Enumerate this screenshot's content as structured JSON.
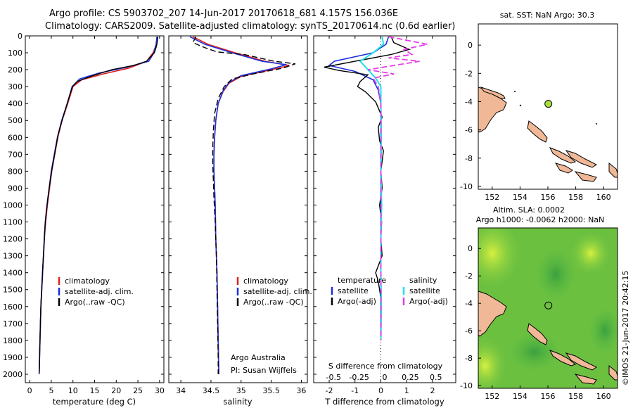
{
  "header": {
    "line1": "Argo profile: CS 5903702_207 14-Jun-2017 20170618_681 4.157S 156.036E",
    "line2": "Climatology: CARS2009. Satellite-adjusted climatology: synTS_20170614.nc (0.6d earlier)"
  },
  "side_text": "©IMOS 21-Jun-2017 20:42:15",
  "colors": {
    "climatology": "#e02020",
    "satellite": "#1a2fe0",
    "argo": "#000000",
    "cyan": "#20e0e8",
    "magenta": "#e83ce8",
    "land": "#f0b896",
    "dot": "#a8e040"
  },
  "chart_data": [
    {
      "id": "temperature",
      "type": "line",
      "xlabel": "temperature (deg C)",
      "ylim": [
        2050,
        0
      ],
      "xlim": [
        -1,
        31
      ],
      "xticks": [
        0,
        5,
        10,
        15,
        20,
        25,
        30
      ],
      "yticks": [
        0,
        100,
        200,
        300,
        400,
        500,
        600,
        700,
        800,
        900,
        1000,
        1100,
        1200,
        1300,
        1400,
        1500,
        1600,
        1700,
        1800,
        1900,
        2000
      ],
      "legend": [
        "climatology",
        "satellite-adj. clim.",
        "Argo(..raw -QC)"
      ],
      "series": [
        {
          "name": "climatology",
          "color": "climatology",
          "points": [
            [
              29.5,
              5
            ],
            [
              29.3,
              50
            ],
            [
              28.5,
              100
            ],
            [
              27,
              150
            ],
            [
              23,
              190
            ],
            [
              17,
              225
            ],
            [
              12,
              260
            ],
            [
              10,
              300
            ],
            [
              8.8,
              400
            ],
            [
              7.5,
              500
            ],
            [
              6.5,
              600
            ],
            [
              5.8,
              700
            ],
            [
              5.1,
              800
            ],
            [
              4.6,
              900
            ],
            [
              4.1,
              1000
            ],
            [
              3.7,
              1100
            ],
            [
              3.4,
              1200
            ],
            [
              3.2,
              1300
            ],
            [
              3.0,
              1400
            ],
            [
              2.8,
              1500
            ],
            [
              2.6,
              1600
            ],
            [
              2.5,
              1700
            ],
            [
              2.4,
              1800
            ],
            [
              2.3,
              1900
            ],
            [
              2.2,
              2000
            ]
          ]
        },
        {
          "name": "satellite-adj. clim.",
          "color": "satellite",
          "points": [
            [
              29.4,
              5
            ],
            [
              29.2,
              50
            ],
            [
              28.7,
              100
            ],
            [
              27.5,
              150
            ],
            [
              22.5,
              185
            ],
            [
              16,
              220
            ],
            [
              11.5,
              255
            ],
            [
              9.8,
              300
            ],
            [
              8.7,
              400
            ],
            [
              7.4,
              500
            ],
            [
              6.4,
              600
            ],
            [
              5.7,
              700
            ],
            [
              5.0,
              800
            ],
            [
              4.5,
              900
            ],
            [
              4.0,
              1000
            ],
            [
              3.6,
              1100
            ],
            [
              3.4,
              1200
            ],
            [
              3.2,
              1300
            ],
            [
              3.0,
              1400
            ],
            [
              2.8,
              1500
            ],
            [
              2.6,
              1600
            ],
            [
              2.5,
              1700
            ],
            [
              2.4,
              1800
            ],
            [
              2.3,
              1900
            ],
            [
              2.2,
              2000
            ]
          ]
        },
        {
          "name": "Argo(..raw -QC)",
          "color": "argo",
          "points": [
            [
              29.6,
              5
            ],
            [
              29.5,
              30
            ],
            [
              29.3,
              60
            ],
            [
              28.8,
              100
            ],
            [
              27,
              150
            ],
            [
              24,
              175
            ],
            [
              19,
              200
            ],
            [
              14,
              240
            ],
            [
              11,
              270
            ],
            [
              9.9,
              300
            ],
            [
              8.9,
              380
            ],
            [
              7.7,
              480
            ],
            [
              6.6,
              580
            ],
            [
              5.9,
              680
            ],
            [
              5.2,
              780
            ],
            [
              4.6,
              880
            ],
            [
              4.1,
              980
            ],
            [
              3.7,
              1080
            ],
            [
              3.4,
              1180
            ],
            [
              3.2,
              1280
            ],
            [
              3.0,
              1380
            ],
            [
              2.8,
              1480
            ],
            [
              2.6,
              1580
            ],
            [
              2.5,
              1680
            ],
            [
              2.4,
              1780
            ],
            [
              2.3,
              1880
            ],
            [
              2.2,
              1990
            ]
          ]
        }
      ]
    },
    {
      "id": "salinity",
      "type": "line",
      "xlabel": "salinity",
      "ylim": [
        2050,
        0
      ],
      "xlim": [
        33.8,
        36.1
      ],
      "xticks": [
        34,
        34.5,
        35,
        35.5,
        36
      ],
      "legend": [
        "climatology",
        "satellite-adj. clim.",
        "Argo(..raw -QC)"
      ],
      "annotation": [
        "Argo Australia",
        "PI: Susan Wijffels"
      ],
      "series": [
        {
          "name": "climatology",
          "color": "climatology",
          "points": [
            [
              34.2,
              5
            ],
            [
              34.45,
              50
            ],
            [
              34.9,
              100
            ],
            [
              35.4,
              150
            ],
            [
              35.8,
              175
            ],
            [
              35.5,
              200
            ],
            [
              35.0,
              240
            ],
            [
              34.8,
              280
            ],
            [
              34.7,
              330
            ],
            [
              34.62,
              400
            ],
            [
              34.58,
              500
            ],
            [
              34.56,
              600
            ],
            [
              34.55,
              700
            ],
            [
              34.55,
              800
            ],
            [
              34.56,
              900
            ],
            [
              34.57,
              1000
            ],
            [
              34.58,
              1200
            ],
            [
              34.6,
              1400
            ],
            [
              34.61,
              1600
            ],
            [
              34.62,
              1800
            ],
            [
              34.63,
              2000
            ]
          ]
        },
        {
          "name": "satellite-adj. clim.",
          "color": "satellite",
          "points": [
            [
              34.15,
              5
            ],
            [
              34.4,
              50
            ],
            [
              34.85,
              100
            ],
            [
              35.35,
              150
            ],
            [
              35.75,
              170
            ],
            [
              35.5,
              195
            ],
            [
              35.0,
              235
            ],
            [
              34.8,
              275
            ],
            [
              34.7,
              325
            ],
            [
              34.62,
              400
            ],
            [
              34.58,
              500
            ],
            [
              34.56,
              600
            ],
            [
              34.55,
              700
            ],
            [
              34.55,
              800
            ],
            [
              34.56,
              900
            ],
            [
              34.57,
              1000
            ],
            [
              34.58,
              1200
            ],
            [
              34.6,
              1400
            ],
            [
              34.61,
              1600
            ],
            [
              34.62,
              1800
            ],
            [
              34.63,
              2000
            ]
          ]
        },
        {
          "name": "Argo(..raw -QC)",
          "color": "argo",
          "points": [
            [
              34.25,
              5
            ],
            [
              34.2,
              40
            ],
            [
              34.4,
              70
            ],
            [
              34.6,
              95
            ],
            [
              35.05,
              110
            ],
            [
              35.55,
              150
            ],
            [
              35.9,
              165
            ],
            [
              35.7,
              190
            ],
            [
              35.2,
              225
            ],
            [
              34.85,
              255
            ],
            [
              34.72,
              300
            ],
            [
              34.62,
              370
            ],
            [
              34.56,
              460
            ],
            [
              34.54,
              560
            ],
            [
              34.53,
              660
            ],
            [
              34.53,
              760
            ],
            [
              34.54,
              860
            ],
            [
              34.55,
              960
            ],
            [
              34.57,
              1100
            ],
            [
              34.59,
              1300
            ],
            [
              34.6,
              1500
            ],
            [
              34.61,
              1700
            ],
            [
              34.62,
              1900
            ],
            [
              34.62,
              2000
            ]
          ]
        }
      ]
    },
    {
      "id": "difference",
      "type": "line",
      "xlabel": "T difference from climatology",
      "xlabel_top": "S difference from climatology",
      "ylim": [
        2050,
        0
      ],
      "xlim": [
        -2.6,
        2.9
      ],
      "xticks": [
        -2,
        -1,
        0,
        1,
        2
      ],
      "xticks_top": [
        "-0.5",
        "-0.25",
        "0",
        "0.25",
        "0.5"
      ],
      "legend_left_title": "temperature",
      "legend_right_title": "salinity",
      "legend": [
        "satellite",
        "Argo(-adj)",
        "satellite",
        "Argo(-adj)"
      ],
      "series": [
        {
          "name": "temperature satellite",
          "color": "satellite",
          "points": [
            [
              0.3,
              5
            ],
            [
              0.2,
              50
            ],
            [
              -0.3,
              100
            ],
            [
              -1.8,
              150
            ],
            [
              -2.0,
              175
            ],
            [
              -1.0,
              210
            ],
            [
              -0.3,
              260
            ],
            [
              -0.1,
              320
            ],
            [
              0,
              400
            ],
            [
              0,
              600
            ],
            [
              0,
              800
            ],
            [
              0,
              1000
            ],
            [
              0,
              1200
            ],
            [
              0,
              1400
            ],
            [
              0,
              1600
            ],
            [
              0,
              1800
            ]
          ]
        },
        {
          "name": "temperature Argo(-adj)",
          "color": "argo",
          "points": [
            [
              0.4,
              5
            ],
            [
              0.5,
              40
            ],
            [
              1.1,
              80
            ],
            [
              0.4,
              110
            ],
            [
              -1.0,
              150
            ],
            [
              -2.2,
              185
            ],
            [
              -1.6,
              205
            ],
            [
              -0.5,
              230
            ],
            [
              -0.8,
              270
            ],
            [
              -0.9,
              300
            ],
            [
              -0.6,
              330
            ],
            [
              -0.2,
              390
            ],
            [
              0.05,
              480
            ],
            [
              -0.1,
              540
            ],
            [
              -0.05,
              620
            ],
            [
              0.1,
              680
            ],
            [
              0,
              800
            ],
            [
              0.05,
              900
            ],
            [
              -0.05,
              1000
            ],
            [
              0.03,
              1100
            ],
            [
              0,
              1200
            ],
            [
              0.05,
              1300
            ],
            [
              -0.2,
              1400
            ],
            [
              -0.1,
              1450
            ],
            [
              0,
              1550
            ],
            [
              0,
              1800
            ]
          ]
        },
        {
          "name": "salinity satellite",
          "color": "cyan",
          "points": [
            [
              0.05,
              5
            ],
            [
              0.1,
              50
            ],
            [
              -0.3,
              100
            ],
            [
              -0.8,
              150
            ],
            [
              -0.5,
              200
            ],
            [
              -0.2,
              250
            ],
            [
              0,
              300
            ],
            [
              0,
              400
            ],
            [
              0.02,
              600
            ],
            [
              0,
              800
            ],
            [
              0.03,
              1000
            ],
            [
              0,
              1200
            ],
            [
              0,
              1400
            ],
            [
              0.02,
              1600
            ],
            [
              0,
              1800
            ]
          ]
        },
        {
          "name": "salinity Argo(-adj)",
          "color": "magenta",
          "points": [
            [
              0.3,
              5
            ],
            [
              1.8,
              50
            ],
            [
              0.9,
              80
            ],
            [
              1.2,
              110
            ],
            [
              0.3,
              130
            ],
            [
              1.5,
              150
            ],
            [
              0.7,
              170
            ],
            [
              -0.5,
              200
            ],
            [
              0.5,
              225
            ],
            [
              -0.3,
              250
            ],
            [
              -0.1,
              300
            ],
            [
              0,
              400
            ],
            [
              0,
              600
            ],
            [
              0,
              800
            ],
            [
              0,
              1000
            ],
            [
              0,
              1200
            ],
            [
              0,
              1400
            ],
            [
              0,
              1600
            ],
            [
              0,
              1800
            ]
          ]
        }
      ]
    },
    {
      "id": "map_sst",
      "type": "map",
      "title": "sat. SST: NaN Argo: 30.3",
      "xlim": [
        151,
        161
      ],
      "ylim": [
        -10.2,
        1.5
      ],
      "xticks": [
        152,
        154,
        156,
        158,
        160
      ],
      "yticks": [
        0,
        -2,
        -4,
        -6,
        -8,
        -10
      ],
      "argo_position": [
        156.036,
        -4.157
      ]
    },
    {
      "id": "map_sla",
      "type": "map",
      "title_line1": "Altim. SLA: 0.0002",
      "title_line2": "Argo h1000: -0.0062 h2000: NaN",
      "xlim": [
        151,
        161
      ],
      "ylim": [
        -10.2,
        1.5
      ],
      "xticks": [
        152,
        154,
        156,
        158,
        160
      ],
      "yticks": [
        0,
        -2,
        -4,
        -6,
        -8,
        -10
      ],
      "argo_position": [
        156.036,
        -4.157
      ]
    }
  ]
}
